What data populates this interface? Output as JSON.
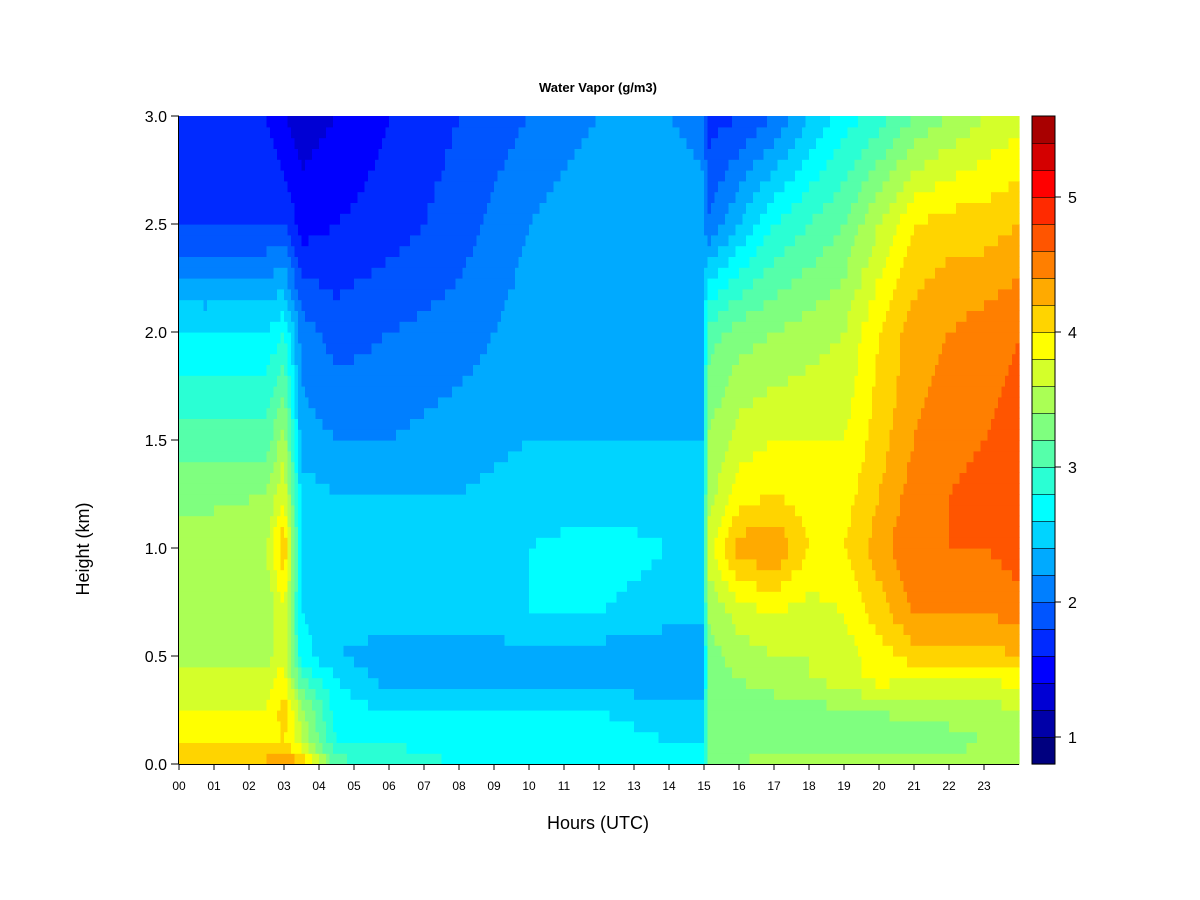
{
  "chart_data": {
    "type": "heatmap",
    "title": "Water Vapor (g/m3)",
    "xlabel": "Hours (UTC)",
    "ylabel": "Height (km)",
    "x_ticks": [
      "00",
      "01",
      "02",
      "03",
      "04",
      "05",
      "06",
      "07",
      "08",
      "09",
      "10",
      "11",
      "12",
      "13",
      "14",
      "15",
      "16",
      "17",
      "18",
      "19",
      "20",
      "21",
      "22",
      "23"
    ],
    "y_ticks": [
      "0.0",
      "0.5",
      "1.0",
      "1.5",
      "2.0",
      "2.5",
      "3.0"
    ],
    "xlim": [
      0,
      24
    ],
    "ylim": [
      0,
      3.0
    ],
    "colorbar": {
      "ticks": [
        "1",
        "2",
        "3",
        "4",
        "5"
      ],
      "range": [
        0.8,
        5.6
      ],
      "step": 0.2,
      "colors": [
        "#00007F",
        "#0000A8",
        "#0000D4",
        "#0000FF",
        "#002AFF",
        "#0055FF",
        "#007FFF",
        "#00AAFF",
        "#00D4FF",
        "#00FFFF",
        "#2AFFD4",
        "#55FFAA",
        "#7FFF7F",
        "#AAFF55",
        "#D4FF2A",
        "#FFFF00",
        "#FFD400",
        "#FFAA00",
        "#FF7F00",
        "#FF5500",
        "#FF2A00",
        "#FF0000",
        "#D40000",
        "#A80000"
      ]
    },
    "z_grid": {
      "description_units": "g/m3",
      "heights_km": [
        0.0,
        0.1,
        0.25,
        0.4,
        0.5,
        0.7,
        1.0,
        1.25,
        1.5,
        2.0,
        2.5,
        3.0
      ],
      "hours": [
        0,
        2.5,
        3.0,
        3.5,
        4.5,
        6,
        8,
        10,
        12,
        14,
        15.0,
        15.1,
        16,
        17,
        18,
        19,
        20,
        21,
        22,
        23,
        24
      ],
      "values": [
        [
          4.2,
          4.3,
          4.4,
          4.3,
          3.1,
          2.9,
          2.8,
          2.8,
          2.8,
          2.7,
          2.7,
          3.3,
          3.4,
          3.5,
          3.5,
          3.5,
          3.5,
          3.5,
          3.5,
          3.6,
          3.6
        ],
        [
          4.0,
          3.9,
          4.0,
          3.6,
          2.8,
          2.8,
          2.7,
          2.7,
          2.7,
          2.6,
          2.6,
          3.2,
          3.3,
          3.3,
          3.3,
          3.3,
          3.2,
          3.3,
          3.3,
          3.4,
          3.4
        ],
        [
          3.8,
          3.8,
          4.1,
          3.5,
          2.7,
          2.6,
          2.6,
          2.6,
          2.6,
          2.5,
          2.5,
          3.2,
          3.3,
          3.3,
          3.3,
          3.4,
          3.4,
          3.5,
          3.5,
          3.5,
          3.6
        ],
        [
          3.7,
          3.7,
          3.9,
          3.0,
          2.6,
          2.3,
          2.3,
          2.3,
          2.3,
          2.2,
          2.2,
          3.3,
          3.4,
          3.5,
          3.6,
          3.7,
          3.9,
          3.8,
          3.8,
          3.8,
          3.9
        ],
        [
          3.4,
          3.5,
          3.8,
          2.7,
          2.4,
          2.3,
          2.3,
          2.3,
          2.3,
          2.2,
          2.2,
          3.3,
          3.5,
          3.6,
          3.6,
          3.7,
          3.9,
          4.1,
          4.1,
          4.1,
          4.2
        ],
        [
          3.4,
          3.4,
          3.8,
          2.6,
          2.5,
          2.5,
          2.5,
          2.6,
          2.6,
          2.5,
          2.5,
          3.4,
          3.7,
          3.8,
          3.7,
          3.8,
          4.1,
          4.4,
          4.4,
          4.4,
          4.5
        ],
        [
          3.5,
          3.6,
          4.2,
          2.6,
          2.6,
          2.6,
          2.6,
          2.6,
          2.7,
          2.6,
          2.6,
          3.7,
          4.3,
          4.4,
          4.0,
          4.0,
          4.3,
          4.6,
          4.6,
          4.6,
          4.7
        ],
        [
          3.3,
          3.4,
          3.8,
          2.5,
          2.4,
          2.4,
          2.4,
          2.5,
          2.5,
          2.5,
          2.5,
          3.5,
          3.9,
          4.0,
          3.9,
          3.9,
          4.2,
          4.5,
          4.6,
          4.7,
          4.8
        ],
        [
          3.1,
          3.1,
          3.5,
          2.3,
          2.2,
          2.2,
          2.3,
          2.4,
          2.4,
          2.4,
          2.4,
          3.4,
          3.7,
          3.8,
          3.8,
          3.8,
          4.1,
          4.4,
          4.5,
          4.6,
          4.7
        ],
        [
          2.6,
          2.6,
          2.8,
          2.1,
          1.9,
          2.0,
          2.1,
          2.3,
          2.4,
          2.4,
          2.4,
          3.1,
          3.3,
          3.4,
          3.5,
          3.6,
          4.0,
          4.3,
          4.4,
          4.5,
          4.6
        ],
        [
          1.8,
          1.8,
          1.8,
          1.5,
          1.6,
          1.7,
          1.9,
          2.2,
          2.4,
          2.4,
          2.3,
          2.0,
          2.4,
          2.8,
          3.0,
          3.2,
          3.6,
          4.0,
          4.1,
          4.1,
          4.2
        ],
        [
          1.6,
          1.6,
          1.4,
          1.3,
          1.4,
          1.6,
          1.8,
          2.0,
          2.2,
          2.2,
          2.1,
          1.7,
          1.8,
          2.0,
          2.4,
          2.7,
          2.9,
          3.2,
          3.4,
          3.6,
          3.7
        ]
      ]
    }
  }
}
